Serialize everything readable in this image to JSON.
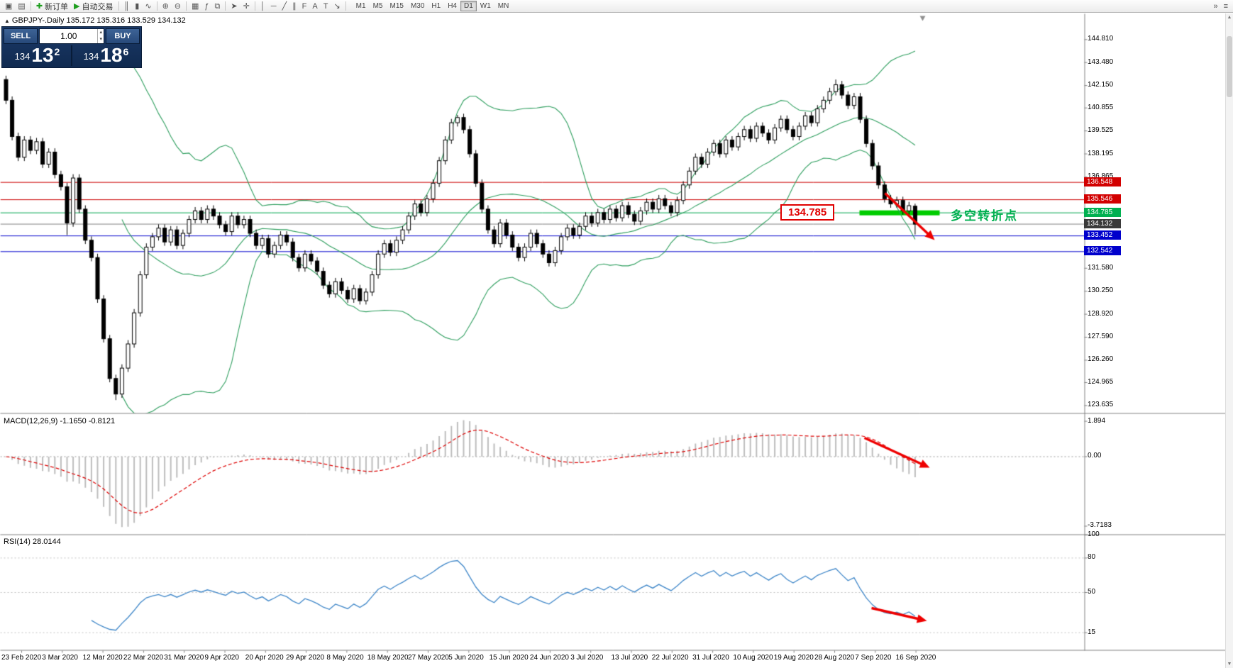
{
  "toolbar": {
    "items": [
      {
        "name": "new-chart-icon",
        "glyph": "▣"
      },
      {
        "name": "profiles-icon",
        "glyph": "▤"
      },
      {
        "sep": true
      },
      {
        "name": "new-order-button",
        "glyph": "✚",
        "label": "新订单",
        "accent": "#1e9e1e"
      },
      {
        "name": "autotrade-button",
        "glyph": "▶",
        "label": "自动交易",
        "accent": "#1e9e1e"
      },
      {
        "sep": true
      },
      {
        "name": "bar-chart-icon",
        "glyph": "║"
      },
      {
        "name": "candlestick-chart-icon",
        "glyph": "▮"
      },
      {
        "name": "line-chart-icon",
        "glyph": "∿"
      },
      {
        "sep": true
      },
      {
        "name": "zoom-in-icon",
        "glyph": "⊕"
      },
      {
        "name": "zoom-out-icon",
        "glyph": "⊖"
      },
      {
        "sep": true
      },
      {
        "name": "auto-arrange-icon",
        "glyph": "▦"
      },
      {
        "name": "indicators-icon",
        "glyph": "ƒ"
      },
      {
        "name": "templates-icon",
        "glyph": "⧉"
      },
      {
        "sep": true
      },
      {
        "name": "cursor-icon",
        "glyph": "➤"
      },
      {
        "name": "crosshair-icon",
        "glyph": "✛"
      },
      {
        "sep": true
      },
      {
        "name": "vertical-line-icon",
        "glyph": "│"
      },
      {
        "name": "horizontal-line-icon",
        "glyph": "─"
      },
      {
        "name": "trendline-icon",
        "glyph": "╱"
      },
      {
        "name": "channel-icon",
        "glyph": "∥"
      },
      {
        "name": "fibonacci-icon",
        "glyph": "F"
      },
      {
        "name": "text-icon",
        "glyph": "A"
      },
      {
        "name": "label-icon",
        "glyph": "T"
      },
      {
        "name": "arrow-tool-icon",
        "glyph": "↘"
      },
      {
        "sep": true
      }
    ],
    "timeframes": [
      {
        "label": "M1"
      },
      {
        "label": "M5"
      },
      {
        "label": "M15"
      },
      {
        "label": "M30"
      },
      {
        "label": "H1"
      },
      {
        "label": "H4"
      },
      {
        "label": "D1",
        "active": true
      },
      {
        "label": "W1"
      },
      {
        "label": "MN"
      }
    ],
    "right_items": [
      {
        "name": "search-icon",
        "glyph": "»"
      },
      {
        "name": "panel-toggle-icon",
        "glyph": "≡"
      }
    ]
  },
  "trade_panel": {
    "sell_label": "SELL",
    "buy_label": "BUY",
    "volume": "1.00",
    "bid": {
      "main": "134",
      "pips": "13",
      "point": "2"
    },
    "ask": {
      "main": "134",
      "pips": "18",
      "point": "6"
    }
  },
  "chart": {
    "collapse_marker": "▲",
    "title": "GBPJPY-.Daily",
    "ohlc": "135.172 135.316 133.529 134.132",
    "price_axis_labels": [
      "144.810",
      "143.480",
      "142.150",
      "140.855",
      "139.525",
      "138.195",
      "136.865",
      "131.580",
      "130.250",
      "128.920",
      "127.590",
      "126.260",
      "124.965",
      "123.635"
    ],
    "hlines": [
      {
        "price": "136.548",
        "color": "#cc0000",
        "tag_bg": "#d20000"
      },
      {
        "price": "135.546",
        "color": "#cc0000",
        "tag_bg": "#d20000"
      },
      {
        "price": "134.785",
        "color": "#00a650",
        "tag_bg": "#00b050"
      },
      {
        "price": "134.132",
        "color": "#808080",
        "tag_bg": "#3a3a3a"
      },
      {
        "price": "133.452",
        "color": "#0000cc",
        "tag_bg": "#0000cc"
      },
      {
        "price": "132.542",
        "color": "#0000cc",
        "tag_bg": "#0000cc"
      }
    ],
    "annotations": {
      "level_box": "134.785",
      "turning_point": "多空转折点",
      "highlight_color": "#00cc00",
      "arrow_color": "#ee0000"
    },
    "dates": [
      "23 Feb 2020",
      "3 Mar 2020",
      "12 Mar 2020",
      "22 Mar 2020",
      "31 Mar 2020",
      "9 Apr 2020",
      "20 Apr 2020",
      "29 Apr 2020",
      "8 May 2020",
      "18 May 2020",
      "27 May 2020",
      "5 Jun 2020",
      "15 Jun 2020",
      "24 Jun 2020",
      "3 Jul 2020",
      "13 Jul 2020",
      "22 Jul 2020",
      "31 Jul 2020",
      "10 Aug 2020",
      "19 Aug 2020",
      "28 Aug 2020",
      "7 Sep 2020",
      "16 Sep 2020"
    ]
  },
  "macd": {
    "label": "MACD(12,26,9) -1.1650 -0.8121",
    "scale_labels": [
      "1.894",
      "0.00",
      "-3.7183"
    ]
  },
  "rsi": {
    "label": "RSI(14) 28.0144",
    "scale_labels": [
      "100",
      "80",
      "50",
      "15"
    ]
  },
  "chart_data": {
    "type": "candlestick",
    "symbol": "GBPJPY-",
    "timeframe": "Daily",
    "date_range": {
      "start": "23 Feb 2020",
      "end": "16 Sep 2020"
    },
    "visible_price_range": [
      123.2,
      146.3
    ],
    "indicators": [
      "Bollinger Bands(20,2)",
      "MACD(12,26,9)",
      "RSI(14)"
    ],
    "horizontal_levels": [
      136.548,
      135.546,
      134.785,
      134.132,
      133.452,
      132.542
    ],
    "last_ohlc": {
      "open": 135.172,
      "high": 135.316,
      "low": 133.529,
      "close": 134.132
    },
    "closes": [
      141.3,
      139.2,
      138.0,
      139.0,
      138.4,
      138.9,
      137.6,
      138.3,
      137.0,
      136.3,
      134.2,
      136.8,
      135.0,
      133.2,
      132.2,
      129.8,
      127.5,
      125.2,
      124.3,
      125.8,
      127.2,
      129.0,
      131.2,
      132.8,
      133.4,
      133.9,
      133.1,
      133.8,
      132.9,
      133.6,
      134.4,
      134.9,
      134.4,
      135.0,
      134.6,
      134.1,
      133.7,
      134.6,
      134.1,
      134.4,
      133.6,
      132.9,
      133.3,
      132.4,
      132.9,
      133.5,
      133.1,
      132.2,
      131.6,
      132.4,
      132.0,
      131.4,
      130.6,
      130.1,
      130.8,
      130.3,
      129.8,
      130.4,
      129.7,
      130.2,
      131.2,
      132.4,
      133.0,
      132.5,
      133.2,
      133.8,
      134.6,
      135.3,
      134.8,
      135.6,
      136.5,
      137.8,
      139.0,
      140.0,
      140.3,
      139.6,
      138.2,
      136.5,
      135.0,
      133.8,
      133.0,
      134.2,
      133.5,
      132.8,
      132.2,
      132.8,
      133.6,
      133.0,
      132.4,
      131.9,
      132.6,
      133.4,
      133.9,
      133.5,
      134.0,
      134.6,
      134.2,
      134.8,
      134.4,
      135.0,
      134.5,
      135.2,
      134.7,
      134.3,
      134.9,
      135.4,
      135.0,
      135.6,
      135.2,
      134.8,
      135.5,
      136.4,
      137.2,
      138.0,
      137.6,
      138.3,
      138.8,
      138.2,
      139.0,
      138.6,
      139.2,
      139.6,
      139.1,
      139.8,
      139.4,
      139.0,
      139.7,
      140.2,
      139.6,
      139.2,
      139.8,
      140.4,
      140.0,
      140.8,
      141.3,
      141.8,
      142.2,
      141.6,
      141.0,
      141.5,
      140.2,
      138.8,
      137.5,
      136.4,
      135.6,
      135.3,
      135.5,
      134.9,
      135.2,
      134.132
    ]
  }
}
